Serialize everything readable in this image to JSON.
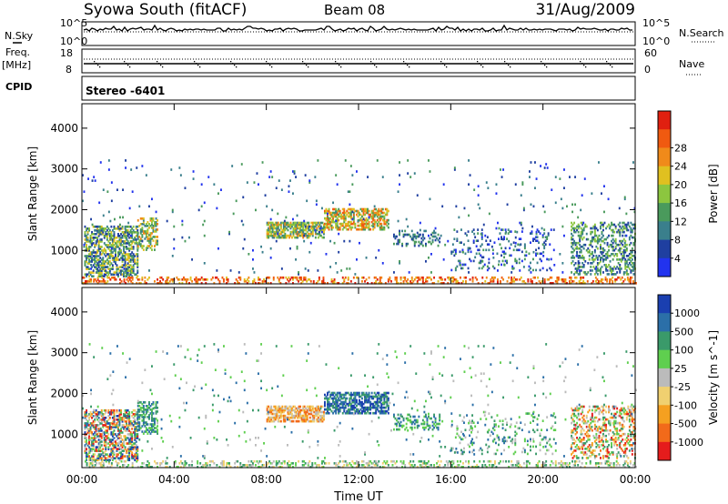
{
  "header": {
    "station": "Syowa South (fitACF)",
    "beam": "Beam 08",
    "date": "31/Aug/2009"
  },
  "noise_panel": {
    "left_label": "N.Sky",
    "right_label": "N.Search",
    "left_ticks": [
      "10^5",
      "10^0"
    ],
    "right_ticks": [
      "10^5",
      "10^0"
    ]
  },
  "freq_panel": {
    "left_label_line1": "Freq.",
    "left_label_line2": "[MHz]",
    "right_label": "Nave",
    "left_ticks": [
      "18",
      "8"
    ],
    "right_ticks": [
      "60",
      "0"
    ]
  },
  "cpid_label": "CPID",
  "mode_label": "Stereo -6401",
  "colors": {
    "power": [
      "#2233ee",
      "#1f3fa0",
      "#3a7f8c",
      "#4a9a5c",
      "#8cc63f",
      "#e0c020",
      "#f08a1a",
      "#f05a10",
      "#e02010"
    ],
    "velocity": [
      "#e51c1c",
      "#f26a1a",
      "#f5a020",
      "#f0d070",
      "#bbbbbb",
      "#5fcf4f",
      "#3a9a6a",
      "#2b6fa8",
      "#1a3fb0"
    ],
    "ground_scatter": "#888888",
    "background": "#ffffff"
  },
  "chart_data": [
    {
      "type": "heatmap",
      "title": "Power",
      "xlabel": "",
      "ylabel": "Slant Range [km]",
      "x_range_hours": [
        0,
        24
      ],
      "ylim": [
        180,
        4600
      ],
      "x_ticks": [
        "00:00",
        "04:00",
        "08:00",
        "12:00",
        "16:00",
        "20:00",
        "00:00"
      ],
      "y_ticks": [
        "1000",
        "2000",
        "3000",
        "4000"
      ],
      "colorbar_label": "Power [dB]",
      "colorbar_ticks": [
        "4",
        "8",
        "12",
        "16",
        "20",
        "24",
        "28"
      ],
      "regions": [
        {
          "t": [
            0.1,
            2.4
          ],
          "r": [
            350,
            1600
          ],
          "density": 0.55,
          "level": [
            1,
            5
          ]
        },
        {
          "t": [
            2.4,
            3.3
          ],
          "r": [
            1000,
            1800
          ],
          "density": 0.45,
          "level": [
            2,
            6
          ]
        },
        {
          "t": [
            8.0,
            10.5
          ],
          "r": [
            1300,
            1700
          ],
          "density": 0.7,
          "level": [
            2,
            6
          ]
        },
        {
          "t": [
            10.5,
            13.3
          ],
          "r": [
            1500,
            2000
          ],
          "density": 0.6,
          "level": [
            3,
            7
          ]
        },
        {
          "t": [
            13.5,
            15.5
          ],
          "r": [
            1100,
            1500
          ],
          "density": 0.3,
          "level": [
            1,
            3
          ]
        },
        {
          "t": [
            16.0,
            20.5
          ],
          "r": [
            500,
            1500
          ],
          "density": 0.12,
          "level": [
            0,
            3
          ]
        },
        {
          "t": [
            21.2,
            24.0
          ],
          "r": [
            400,
            1700
          ],
          "density": 0.35,
          "level": [
            1,
            4
          ]
        },
        {
          "t": [
            0.0,
            24.0
          ],
          "r": [
            180,
            320
          ],
          "density": 0.3,
          "level": [
            5,
            8
          ]
        },
        {
          "t": [
            0.0,
            24.0
          ],
          "r": [
            400,
            3200
          ],
          "density": 0.015,
          "level": [
            0,
            3
          ]
        }
      ]
    },
    {
      "type": "heatmap",
      "title": "Velocity",
      "xlabel": "Time UT",
      "ylabel": "Slant Range [km]",
      "x_range_hours": [
        0,
        24
      ],
      "ylim": [
        180,
        4600
      ],
      "x_ticks": [
        "00:00",
        "04:00",
        "08:00",
        "12:00",
        "16:00",
        "20:00",
        "00:00"
      ],
      "y_ticks": [
        "1000",
        "2000",
        "3000",
        "4000"
      ],
      "colorbar_label": "Velocity [m s^-1]",
      "colorbar_ticks": [
        "1000",
        "500",
        "100",
        "25",
        "-25",
        "-100",
        "-500",
        "-1000"
      ],
      "regions": [
        {
          "t": [
            0.1,
            2.4
          ],
          "r": [
            350,
            1600
          ],
          "density": 0.55,
          "level": [
            0,
            8
          ]
        },
        {
          "t": [
            2.4,
            3.3
          ],
          "r": [
            1000,
            1800
          ],
          "density": 0.45,
          "level": [
            1,
            3
          ]
        },
        {
          "t": [
            8.0,
            10.5
          ],
          "r": [
            1300,
            1700
          ],
          "density": 0.7,
          "level": [
            4,
            7
          ]
        },
        {
          "t": [
            10.5,
            13.3
          ],
          "r": [
            1500,
            2000
          ],
          "density": 0.6,
          "level": [
            0,
            2
          ]
        },
        {
          "t": [
            13.5,
            15.5
          ],
          "r": [
            1100,
            1500
          ],
          "density": 0.3,
          "level": [
            1,
            3
          ]
        },
        {
          "t": [
            16.0,
            20.5
          ],
          "r": [
            500,
            1500
          ],
          "density": 0.12,
          "level": [
            1,
            4
          ]
        },
        {
          "t": [
            21.2,
            24.0
          ],
          "r": [
            400,
            1700
          ],
          "density": 0.35,
          "level": [
            2,
            8
          ]
        },
        {
          "t": [
            0.0,
            24.0
          ],
          "r": [
            180,
            320
          ],
          "density": 0.3,
          "level": [
            2,
            5
          ]
        },
        {
          "t": [
            0.0,
            24.0
          ],
          "r": [
            400,
            3200
          ],
          "density": 0.015,
          "level": [
            1,
            4
          ]
        }
      ]
    }
  ]
}
